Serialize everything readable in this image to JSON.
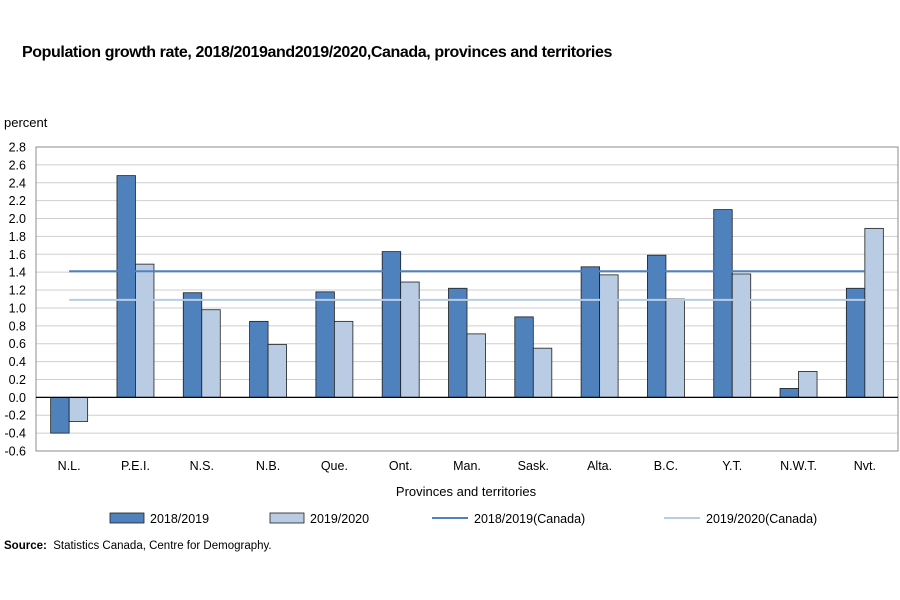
{
  "title": "Population growth rate, 2018/2019and2019/2020,Canada, provinces and territories",
  "source_label": "Source:",
  "source_text": "Statistics Canada, Centre for Demography.",
  "chart_data": {
    "type": "bar",
    "title": "Population growth rate, 2018/2019and2019/2020,Canada, provinces and territories",
    "ylabel": "percent",
    "xlabel": "Provinces and territories",
    "ylim": [
      -0.6,
      2.8
    ],
    "ytick_step": 0.2,
    "categories": [
      "N.L.",
      "P.E.I.",
      "N.S.",
      "N.B.",
      "Que.",
      "Ont.",
      "Man.",
      "Sask.",
      "Alta.",
      "B.C.",
      "Y.T.",
      "N.W.T.",
      "Nvt."
    ],
    "series": [
      {
        "name": "2018/2019",
        "color": "#4f81bd",
        "values": [
          -0.4,
          2.48,
          1.17,
          0.85,
          1.18,
          1.63,
          1.22,
          0.9,
          1.46,
          1.59,
          2.1,
          0.1,
          1.22
        ]
      },
      {
        "name": "2019/2020",
        "color": "#b9cce4",
        "values": [
          -0.27,
          1.49,
          0.98,
          0.59,
          0.85,
          1.29,
          0.71,
          0.55,
          1.37,
          1.1,
          1.38,
          0.29,
          1.89
        ]
      }
    ],
    "reference_lines": [
      {
        "name": "2018/2019(Canada)",
        "value": 1.41,
        "color": "#4f81bd"
      },
      {
        "name": "2019/2020(Canada)",
        "value": 1.09,
        "color": "#b9cce4"
      }
    ],
    "grid": true,
    "legend_position": "bottom"
  }
}
